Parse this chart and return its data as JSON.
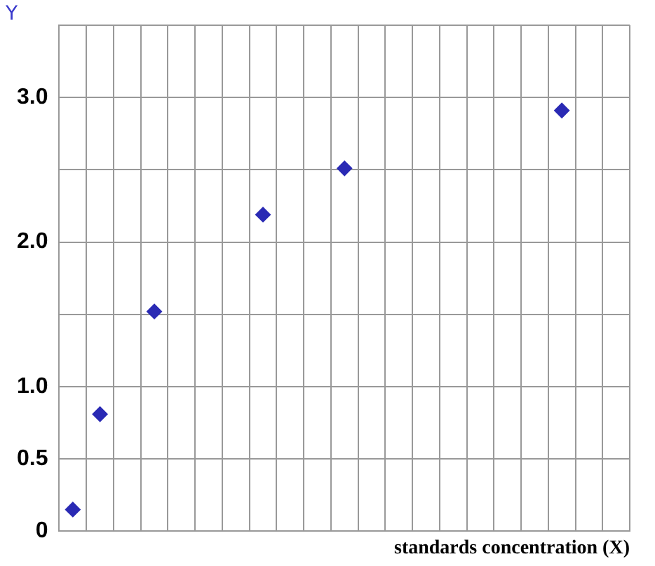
{
  "chart_data": {
    "type": "scatter",
    "xlabel": "standards concentration (X)",
    "ylabel": "Y",
    "categories": [
      null,
      null,
      null,
      null,
      null,
      null,
      null,
      null,
      null,
      null,
      null,
      null,
      null,
      null,
      null,
      null,
      null,
      null,
      null,
      null,
      null
    ],
    "values": [
      0.15,
      0.81,
      null,
      1.52,
      null,
      null,
      null,
      2.19,
      null,
      null,
      2.51,
      null,
      null,
      null,
      null,
      null,
      null,
      null,
      2.91,
      null,
      null
    ],
    "color": "#2a2ab4",
    "marker": "diamond",
    "ylim": [
      0,
      3.5
    ],
    "yticks": [
      0,
      0.5,
      {
        "value": 1,
        "label": "1.0"
      },
      {
        "value": 1.5,
        "label": null
      },
      {
        "value": 2,
        "label": "2.0"
      },
      {
        "value": 2.5,
        "label": null
      },
      {
        "value": 3,
        "label": "3.0"
      },
      {
        "value": 3.5,
        "label": null
      }
    ],
    "tick_labels": "y",
    "grid": true,
    "legend": false
  }
}
